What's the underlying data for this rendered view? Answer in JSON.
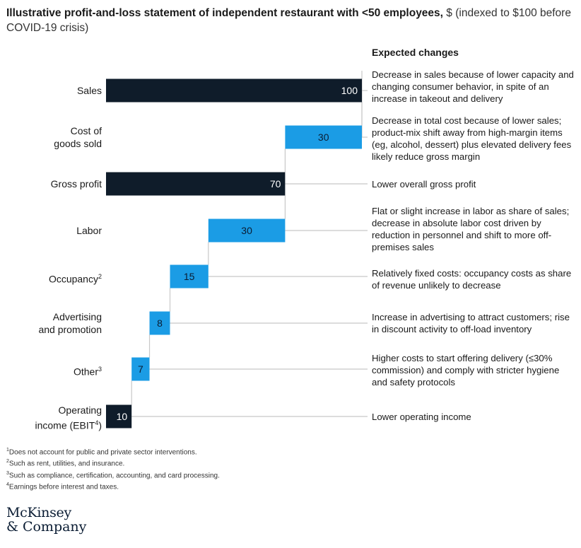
{
  "title": {
    "bold": "Illustrative profit-and-loss statement of independent restaurant with <50 employees,",
    "rest": " $ (indexed to $100 before COVID-19 crisis)"
  },
  "expected_header": "Expected changes",
  "colors": {
    "dark": "#0f1c2a",
    "blue": "#1b9ce5",
    "line": "#c8c8c8"
  },
  "chart_data": {
    "type": "waterfall",
    "title": "Illustrative profit-and-loss statement of independent restaurant with <50 employees, $ (indexed to $100 before COVID-19 crisis)",
    "categories": [
      "Sales",
      "Cost of goods sold",
      "Gross profit",
      "Labor",
      "Occupancy",
      "Advertising and promotion",
      "Other",
      "Operating income (EBIT)"
    ],
    "values": [
      100,
      30,
      70,
      30,
      15,
      8,
      7,
      10
    ],
    "kinds": [
      "total",
      "decrease",
      "total",
      "decrease",
      "decrease",
      "decrease",
      "decrease",
      "total"
    ],
    "xlim": [
      0,
      100
    ]
  },
  "rows": [
    {
      "label_lines": [
        "Sales"
      ],
      "sup": "",
      "value_label": "100",
      "note": "Decrease in sales because of lower capacity and changing consumer behavior, in spite of an increase in takeout and delivery"
    },
    {
      "label_lines": [
        "Cost of",
        "goods sold"
      ],
      "sup": "",
      "value_label": "30",
      "note": "Decrease in total cost because of lower sales; product-mix shift away from high-margin items (eg, alcohol, dessert) plus elevated delivery fees likely reduce gross margin"
    },
    {
      "label_lines": [
        "Gross profit"
      ],
      "sup": "",
      "value_label": "70",
      "note": "Lower overall gross profit"
    },
    {
      "label_lines": [
        "Labor"
      ],
      "sup": "",
      "value_label": "30",
      "note": "Flat or slight increase in labor as share of sales; decrease in absolute labor cost driven by reduction in personnel and shift to more off-premises sales"
    },
    {
      "label_lines": [
        "Occupancy"
      ],
      "sup": "2",
      "value_label": "15",
      "note": "Relatively fixed costs: occupancy costs as share of revenue unlikely to decrease"
    },
    {
      "label_lines": [
        "Advertising",
        "and promotion"
      ],
      "sup": "",
      "value_label": "8",
      "note": "Increase in advertising to attract customers; rise in discount activity to off-load inventory"
    },
    {
      "label_lines": [
        "Other"
      ],
      "sup": "3",
      "value_label": "7",
      "note": "Higher costs to start offering delivery (≤30% commission) and comply with stricter hygiene and safety protocols"
    },
    {
      "label_lines": [
        "Operating",
        "income (EBIT"
      ],
      "sup": "4",
      "label_suffix": ")",
      "value_label": "10",
      "note": "Lower operating income"
    }
  ],
  "footnotes": [
    {
      "n": "1",
      "text": "Does not account for public and private sector interventions."
    },
    {
      "n": "2",
      "text": "Such as rent, utilities, and insurance."
    },
    {
      "n": "3",
      "text": "Such as compliance, certification, accounting, and card processing."
    },
    {
      "n": "4",
      "text": "Earnings before interest and taxes."
    }
  ],
  "logo": {
    "line1": "McKinsey",
    "line2": "& Company"
  }
}
